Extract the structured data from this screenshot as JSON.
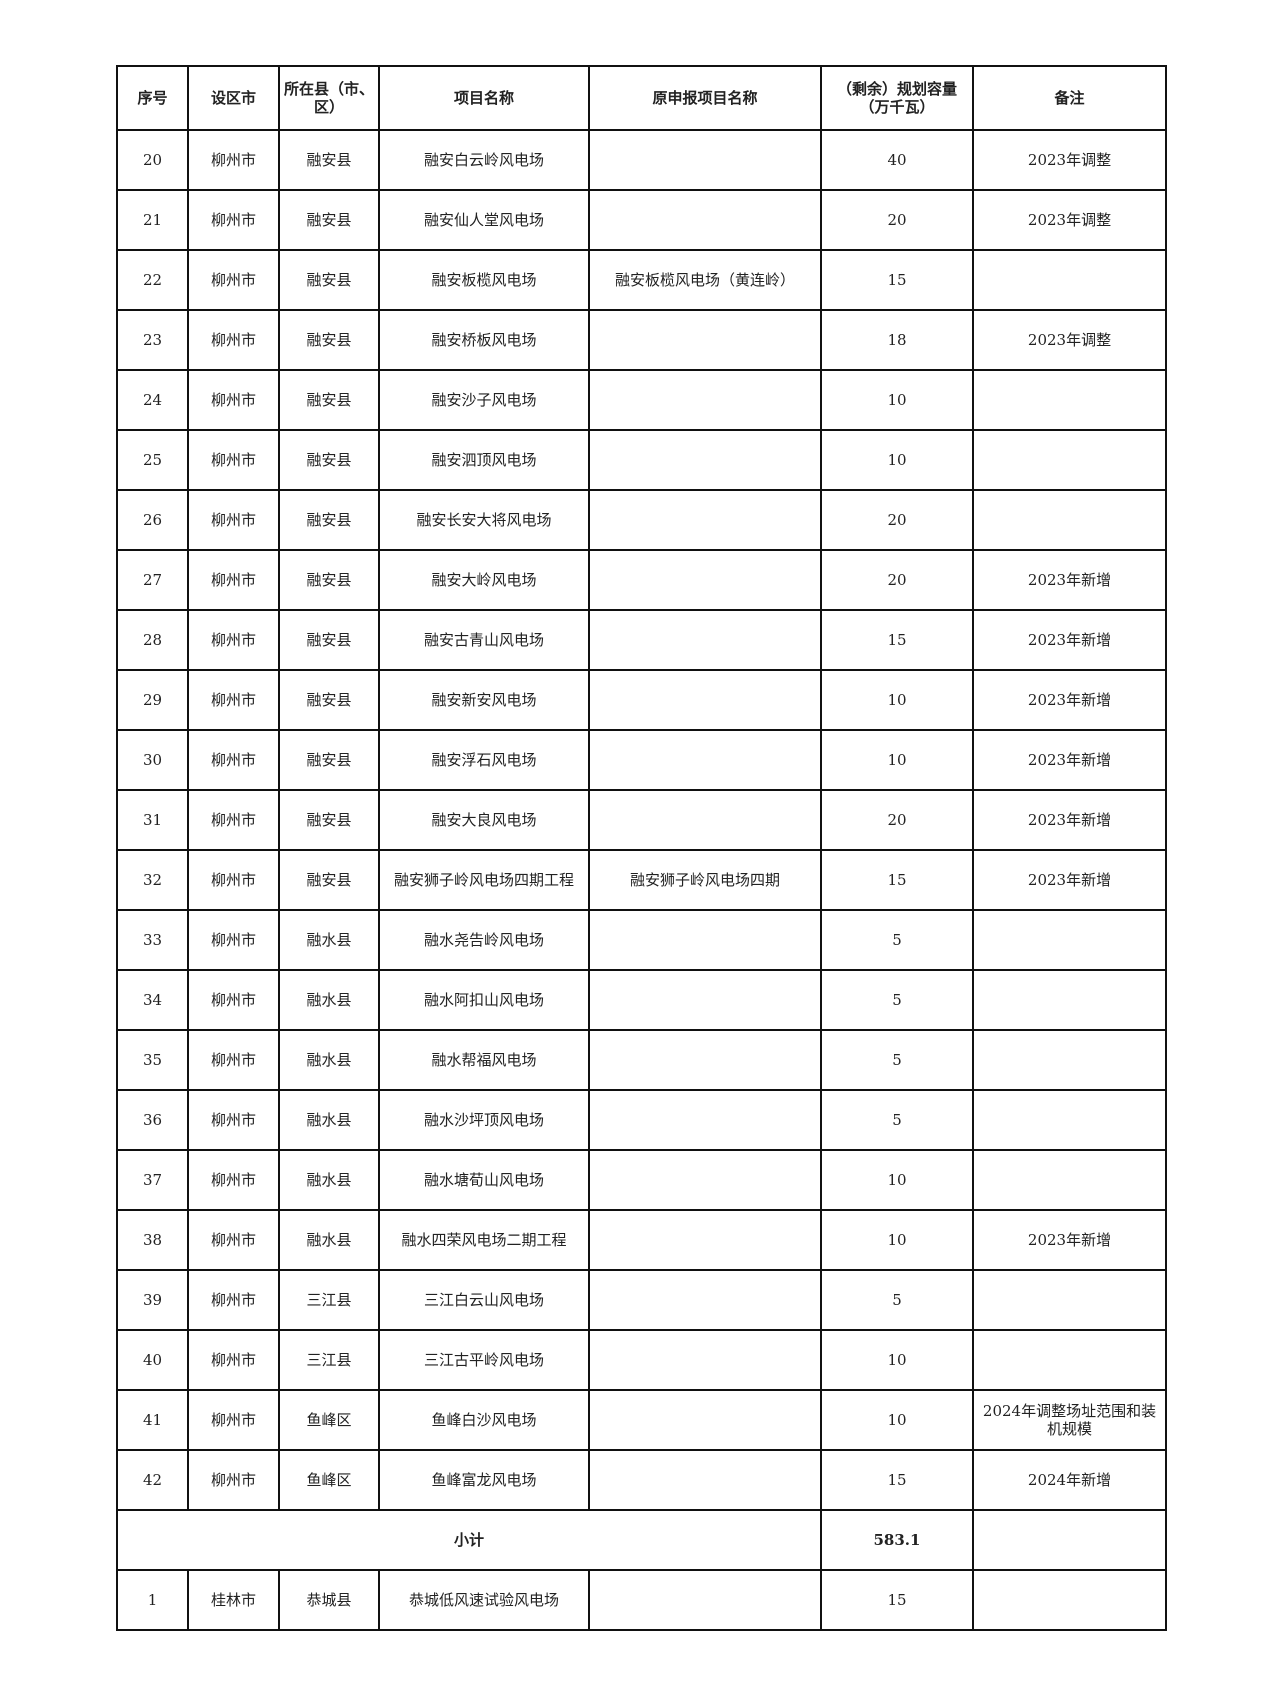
{
  "headers": [
    "序号",
    "设区市",
    "所在县（市、区）",
    "项目名称",
    "原申报项目名称",
    "（剩余）规划容量（万千瓦）",
    "备注"
  ],
  "rows": [
    {
      "no": "20",
      "city": "柳州市",
      "county": "融安县",
      "name": "融安白云岭风电场",
      "orig": "",
      "cap": "40",
      "note": "2023年调整"
    },
    {
      "no": "21",
      "city": "柳州市",
      "county": "融安县",
      "name": "融安仙人堂风电场",
      "orig": "",
      "cap": "20",
      "note": "2023年调整"
    },
    {
      "no": "22",
      "city": "柳州市",
      "county": "融安县",
      "name": "融安板榄风电场",
      "orig": "融安板榄风电场（黄连岭）",
      "cap": "15",
      "note": ""
    },
    {
      "no": "23",
      "city": "柳州市",
      "county": "融安县",
      "name": "融安桥板风电场",
      "orig": "",
      "cap": "18",
      "note": "2023年调整"
    },
    {
      "no": "24",
      "city": "柳州市",
      "county": "融安县",
      "name": "融安沙子风电场",
      "orig": "",
      "cap": "10",
      "note": ""
    },
    {
      "no": "25",
      "city": "柳州市",
      "county": "融安县",
      "name": "融安泗顶风电场",
      "orig": "",
      "cap": "10",
      "note": ""
    },
    {
      "no": "26",
      "city": "柳州市",
      "county": "融安县",
      "name": "融安长安大将风电场",
      "orig": "",
      "cap": "20",
      "note": ""
    },
    {
      "no": "27",
      "city": "柳州市",
      "county": "融安县",
      "name": "融安大岭风电场",
      "orig": "",
      "cap": "20",
      "note": "2023年新增"
    },
    {
      "no": "28",
      "city": "柳州市",
      "county": "融安县",
      "name": "融安古青山风电场",
      "orig": "",
      "cap": "15",
      "note": "2023年新增"
    },
    {
      "no": "29",
      "city": "柳州市",
      "county": "融安县",
      "name": "融安新安风电场",
      "orig": "",
      "cap": "10",
      "note": "2023年新增"
    },
    {
      "no": "30",
      "city": "柳州市",
      "county": "融安县",
      "name": "融安浮石风电场",
      "orig": "",
      "cap": "10",
      "note": "2023年新增"
    },
    {
      "no": "31",
      "city": "柳州市",
      "county": "融安县",
      "name": "融安大良风电场",
      "orig": "",
      "cap": "20",
      "note": "2023年新增"
    },
    {
      "no": "32",
      "city": "柳州市",
      "county": "融安县",
      "name": "融安狮子岭风电场四期工程",
      "orig": "融安狮子岭风电场四期",
      "cap": "15",
      "note": "2023年新增"
    },
    {
      "no": "33",
      "city": "柳州市",
      "county": "融水县",
      "name": "融水尧告岭风电场",
      "orig": "",
      "cap": "5",
      "note": ""
    },
    {
      "no": "34",
      "city": "柳州市",
      "county": "融水县",
      "name": "融水阿扣山风电场",
      "orig": "",
      "cap": "5",
      "note": ""
    },
    {
      "no": "35",
      "city": "柳州市",
      "county": "融水县",
      "name": "融水帮福风电场",
      "orig": "",
      "cap": "5",
      "note": ""
    },
    {
      "no": "36",
      "city": "柳州市",
      "county": "融水县",
      "name": "融水沙坪顶风电场",
      "orig": "",
      "cap": "5",
      "note": ""
    },
    {
      "no": "37",
      "city": "柳州市",
      "county": "融水县",
      "name": "融水塘荀山风电场",
      "orig": "",
      "cap": "10",
      "note": ""
    },
    {
      "no": "38",
      "city": "柳州市",
      "county": "融水县",
      "name": "融水四荣风电场二期工程",
      "orig": "",
      "cap": "10",
      "note": "2023年新增"
    },
    {
      "no": "39",
      "city": "柳州市",
      "county": "三江县",
      "name": "三江白云山风电场",
      "orig": "",
      "cap": "5",
      "note": ""
    },
    {
      "no": "40",
      "city": "柳州市",
      "county": "三江县",
      "name": "三江古平岭风电场",
      "orig": "",
      "cap": "10",
      "note": ""
    },
    {
      "no": "41",
      "city": "柳州市",
      "county": "鱼峰区",
      "name": "鱼峰白沙风电场",
      "orig": "",
      "cap": "10",
      "note": "2024年调整场址范围和装机规模"
    },
    {
      "no": "42",
      "city": "柳州市",
      "county": "鱼峰区",
      "name": "鱼峰富龙风电场",
      "orig": "",
      "cap": "15",
      "note": "2024年新增"
    }
  ],
  "subtotal": {
    "label": "小计",
    "cap": "583.1",
    "note": ""
  },
  "after_rows": [
    {
      "no": "1",
      "city": "桂林市",
      "county": "恭城县",
      "name": "恭城低风速试验风电场",
      "orig": "",
      "cap": "15",
      "note": ""
    }
  ]
}
